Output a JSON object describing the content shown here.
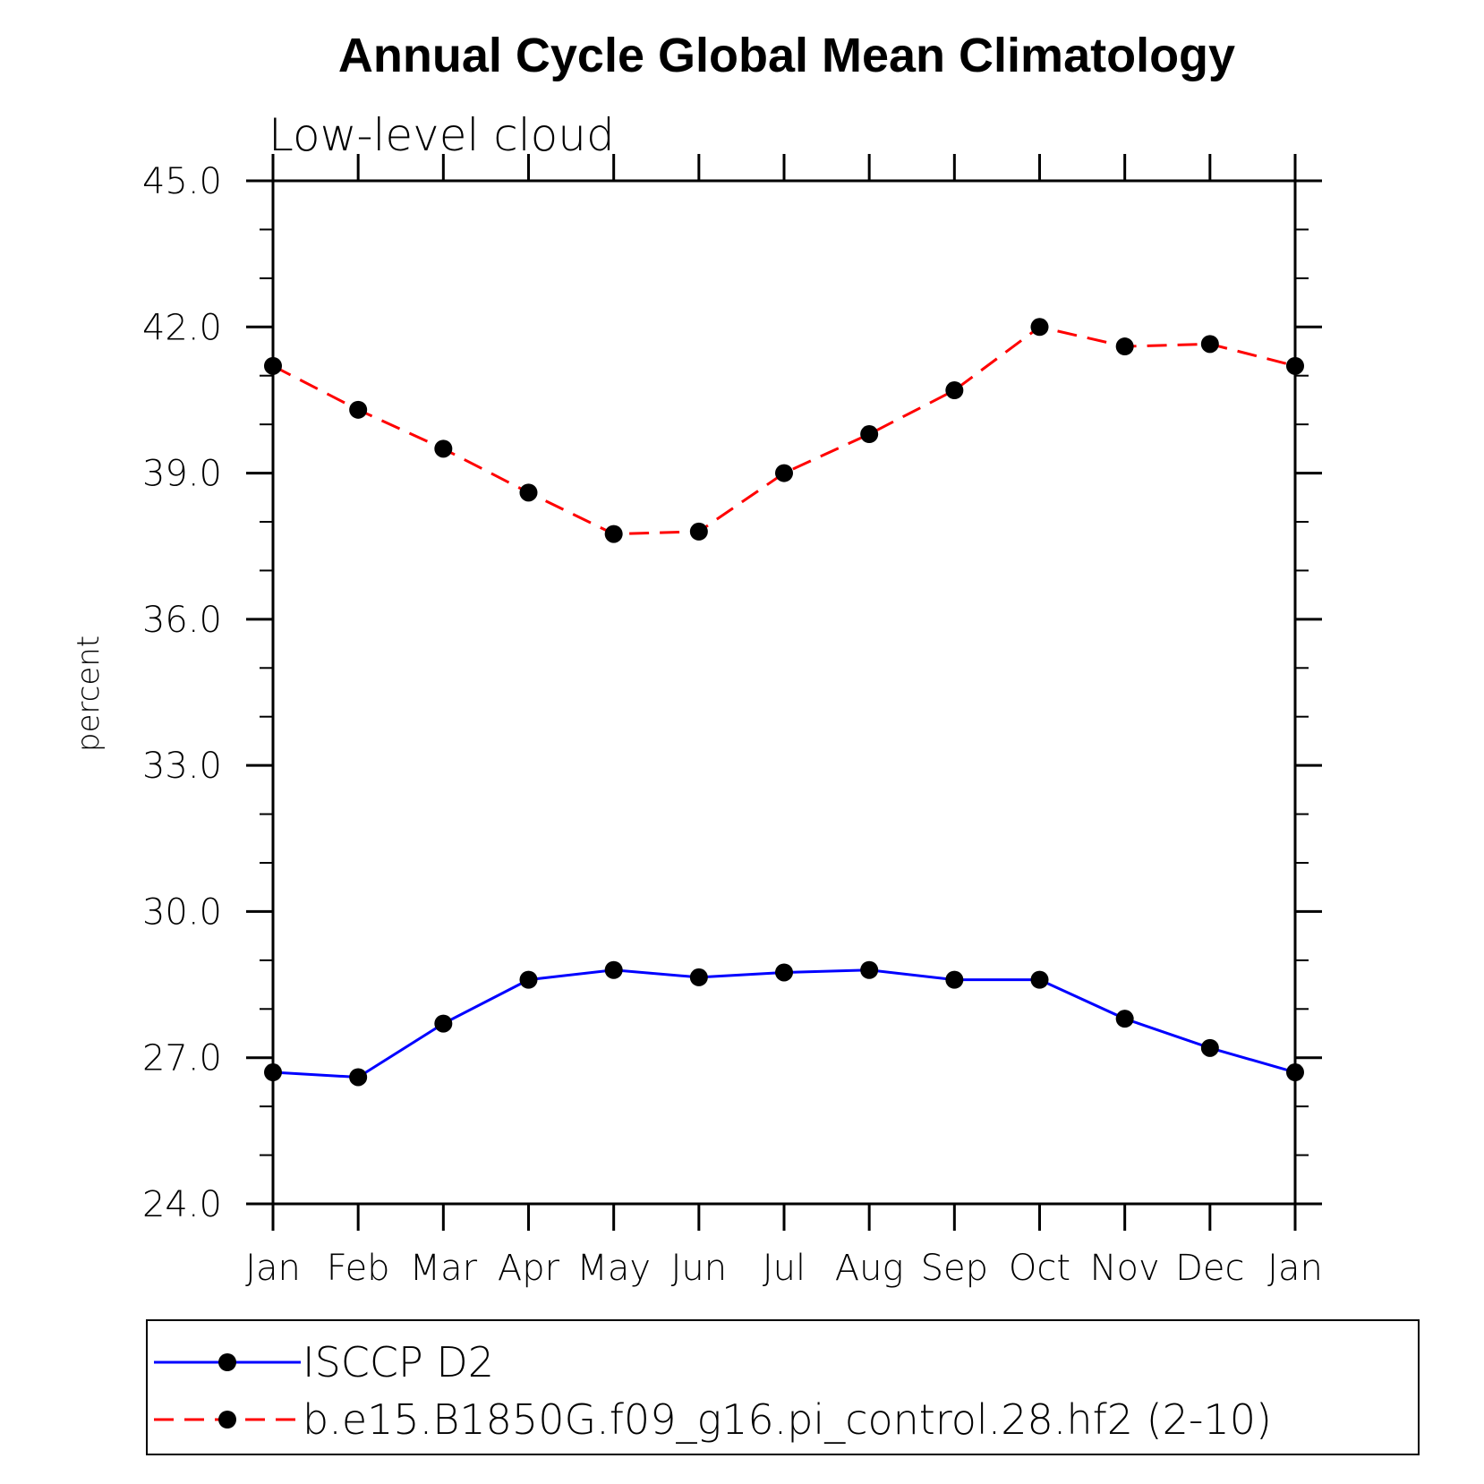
{
  "chart_data": {
    "type": "line",
    "title": "Annual Cycle Global Mean Climatology",
    "subtitle": "Low-level cloud",
    "xlabel": "",
    "ylabel": "percent",
    "categories": [
      "Jan",
      "Feb",
      "Mar",
      "Apr",
      "May",
      "Jun",
      "Jul",
      "Aug",
      "Sep",
      "Oct",
      "Nov",
      "Dec",
      "Jan"
    ],
    "ylim": [
      24.0,
      45.0
    ],
    "yticks": [
      "24.0",
      "27.0",
      "30.0",
      "33.0",
      "36.0",
      "39.0",
      "42.0",
      "45.0"
    ],
    "ytick_values": [
      24,
      27,
      30,
      33,
      36,
      39,
      42,
      45
    ],
    "y_minor_step": 1.0,
    "grid": false,
    "legend_placement": "bottom",
    "series": [
      {
        "name": "ISCCP D2",
        "color": "#0000ff",
        "dash": "solid",
        "marker": "filled-circle",
        "values": [
          26.7,
          26.6,
          27.7,
          28.6,
          28.8,
          28.65,
          28.75,
          28.8,
          28.6,
          28.6,
          27.8,
          27.2,
          26.7
        ]
      },
      {
        "name": "b.e15.B1850G.f09_g16.pi_control.28.hf2 (2-10)",
        "color": "#ff0000",
        "dash": "dashed",
        "marker": "filled-circle",
        "values": [
          41.2,
          40.3,
          39.5,
          38.6,
          37.75,
          37.8,
          39.0,
          39.8,
          40.7,
          42.0,
          41.6,
          41.65,
          41.2
        ]
      }
    ]
  }
}
